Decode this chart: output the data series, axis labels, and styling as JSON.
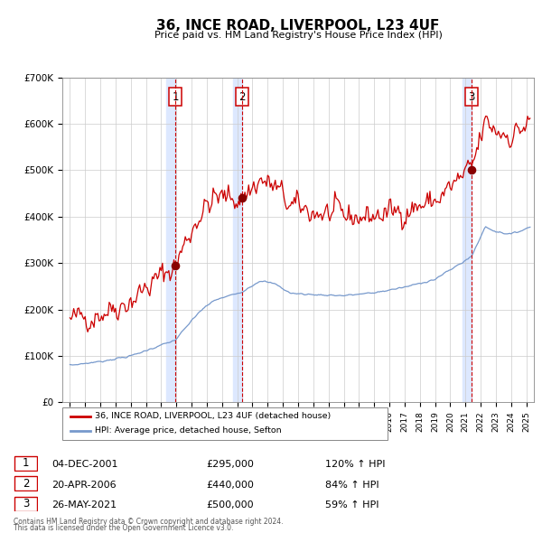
{
  "title": "36, INCE ROAD, LIVERPOOL, L23 4UF",
  "subtitle": "Price paid vs. HM Land Registry's House Price Index (HPI)",
  "legend_red": "36, INCE ROAD, LIVERPOOL, L23 4UF (detached house)",
  "legend_blue": "HPI: Average price, detached house, Sefton",
  "sale1_date": "04-DEC-2001",
  "sale1_price": 295000,
  "sale1_hpi": "120% ↑ HPI",
  "sale2_date": "20-APR-2006",
  "sale2_price": 440000,
  "sale2_hpi": "84% ↑ HPI",
  "sale3_date": "26-MAY-2021",
  "sale3_price": 500000,
  "sale3_hpi": "59% ↑ HPI",
  "footer1": "Contains HM Land Registry data © Crown copyright and database right 2024.",
  "footer2": "This data is licensed under the Open Government Licence v3.0.",
  "ylim_max": 700000,
  "ylim_min": 0,
  "sale1_x": 2001.92,
  "sale2_x": 2006.3,
  "sale3_x": 2021.4,
  "red_color": "#cc0000",
  "blue_color": "#7799cc",
  "shade_color": "#dde8ff",
  "grid_color": "#cccccc",
  "dot_color": "#880000"
}
